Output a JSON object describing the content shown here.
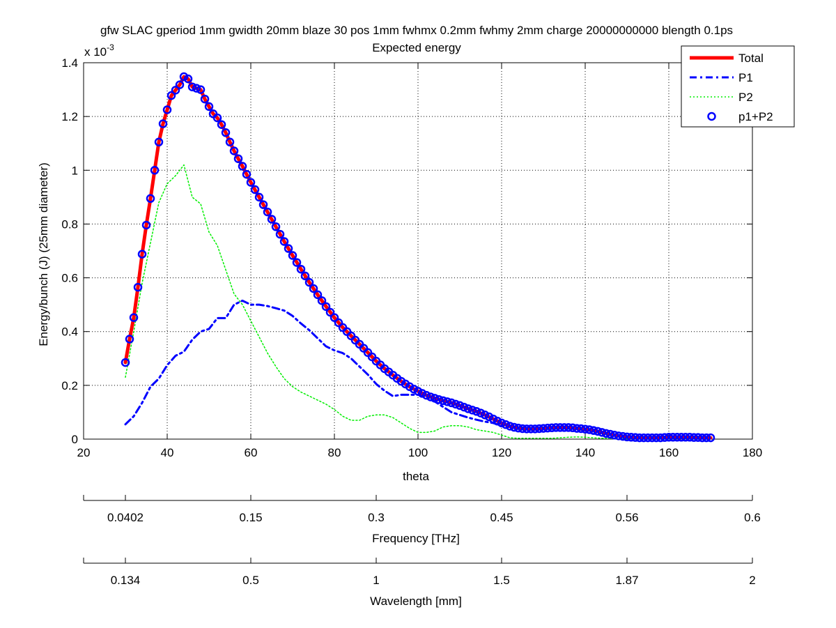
{
  "chart_data": {
    "type": "line",
    "title": "gfw SLAC gperiod 1mm gwidth 20mm blaze 30 pos 1mm fwhmx 0.2mm fwhmy 2mm charge 20000000000 blength 0.1ps",
    "subtitle": "Expected energy",
    "xlabel": "theta",
    "ylabel": "Energy/bunch (J) (25mm diameter)",
    "y_exponent_label": "x 10",
    "y_exponent_power": "-3",
    "xlim": [
      20,
      180
    ],
    "ylim": [
      0,
      1.4
    ],
    "grid": true,
    "legend_position": "top-right",
    "x_ticks": [
      "20",
      "40",
      "60",
      "80",
      "100",
      "120",
      "140",
      "160",
      "180"
    ],
    "y_ticks": [
      "0",
      "0.2",
      "0.4",
      "0.6",
      "0.8",
      "1",
      "1.2",
      "1.4"
    ],
    "secondary_axes": [
      {
        "label": "Frequency [THz]",
        "ticks": [
          {
            "theta": 20,
            "label": ""
          },
          {
            "theta": 30,
            "label": "0.0402"
          },
          {
            "theta": 60,
            "label": "0.15"
          },
          {
            "theta": 90,
            "label": "0.3"
          },
          {
            "theta": 120,
            "label": "0.45"
          },
          {
            "theta": 150,
            "label": "0.56"
          },
          {
            "theta": 180,
            "label": "0.6"
          }
        ]
      },
      {
        "label": "Wavelength [mm]",
        "ticks": [
          {
            "theta": 20,
            "label": ""
          },
          {
            "theta": 30,
            "label": "0.134"
          },
          {
            "theta": 60,
            "label": "0.5"
          },
          {
            "theta": 90,
            "label": "1"
          },
          {
            "theta": 120,
            "label": "1.5"
          },
          {
            "theta": 150,
            "label": "1.87"
          },
          {
            "theta": 180,
            "label": "2"
          }
        ]
      }
    ],
    "series": [
      {
        "name": "Total",
        "style": "solid",
        "color": "#ff0000",
        "x": [
          30,
          31,
          32,
          33,
          34,
          35,
          36,
          37,
          38,
          39,
          40,
          41,
          42,
          43,
          44,
          45,
          46,
          47,
          48,
          49,
          50,
          51,
          52,
          53,
          54,
          55,
          56,
          57,
          58,
          59,
          60,
          62,
          64,
          66,
          68,
          70,
          72,
          74,
          76,
          78,
          80,
          82,
          84,
          86,
          88,
          90,
          92,
          94,
          96,
          98,
          100,
          102,
          104,
          106,
          108,
          110,
          112,
          114,
          116,
          118,
          120,
          122,
          124,
          126,
          128,
          130,
          132,
          134,
          136,
          138,
          140,
          142,
          144,
          146,
          148,
          150,
          152,
          154,
          156,
          158,
          160,
          162,
          164,
          166,
          168,
          170
        ],
        "values": [
          0.285,
          0.372,
          0.452,
          0.565,
          0.688,
          0.796,
          0.895,
          1.0,
          1.105,
          1.173,
          1.225,
          1.278,
          1.298,
          1.318,
          1.348,
          1.34,
          1.31,
          1.305,
          1.3,
          1.265,
          1.237,
          1.21,
          1.195,
          1.17,
          1.14,
          1.105,
          1.072,
          1.043,
          1.015,
          0.985,
          0.955,
          0.9,
          0.845,
          0.79,
          0.735,
          0.683,
          0.632,
          0.583,
          0.537,
          0.493,
          0.452,
          0.415,
          0.384,
          0.353,
          0.322,
          0.29,
          0.262,
          0.238,
          0.215,
          0.195,
          0.178,
          0.163,
          0.152,
          0.143,
          0.135,
          0.125,
          0.113,
          0.103,
          0.09,
          0.075,
          0.06,
          0.048,
          0.041,
          0.038,
          0.038,
          0.04,
          0.042,
          0.043,
          0.043,
          0.04,
          0.037,
          0.032,
          0.025,
          0.018,
          0.012,
          0.008,
          0.006,
          0.005,
          0.005,
          0.006,
          0.007,
          0.007,
          0.007,
          0.006,
          0.005,
          0.005
        ]
      },
      {
        "name": "P1",
        "style": "dashdot",
        "color": "#0000ff",
        "x": [
          30,
          32,
          34,
          36,
          38,
          40,
          42,
          44,
          46,
          48,
          50,
          52,
          54,
          56,
          58,
          60,
          62,
          64,
          66,
          68,
          70,
          72,
          74,
          76,
          78,
          80,
          82,
          84,
          86,
          88,
          90,
          92,
          94,
          96,
          98,
          100,
          102,
          104,
          106,
          108,
          110,
          112,
          114,
          116,
          118,
          120,
          122,
          124,
          126,
          128,
          130,
          132,
          134,
          136,
          138,
          140,
          142,
          144,
          146,
          148,
          150,
          152,
          154,
          156,
          158,
          160,
          162,
          164,
          166,
          168,
          170
        ],
        "values": [
          0.055,
          0.085,
          0.135,
          0.195,
          0.225,
          0.275,
          0.31,
          0.325,
          0.37,
          0.4,
          0.41,
          0.45,
          0.45,
          0.5,
          0.515,
          0.5,
          0.5,
          0.495,
          0.487,
          0.478,
          0.458,
          0.43,
          0.405,
          0.375,
          0.345,
          0.33,
          0.32,
          0.3,
          0.27,
          0.24,
          0.205,
          0.18,
          0.16,
          0.165,
          0.165,
          0.165,
          0.16,
          0.14,
          0.12,
          0.1,
          0.09,
          0.08,
          0.072,
          0.065,
          0.06,
          0.05,
          0.045,
          0.04,
          0.038,
          0.038,
          0.04,
          0.042,
          0.043,
          0.043,
          0.04,
          0.037,
          0.032,
          0.025,
          0.018,
          0.012,
          0.008,
          0.006,
          0.005,
          0.005,
          0.006,
          0.007,
          0.007,
          0.007,
          0.006,
          0.005,
          0.005
        ]
      },
      {
        "name": "P2",
        "style": "dotted",
        "color": "#00ee00",
        "x": [
          30,
          32,
          34,
          36,
          38,
          40,
          42,
          44,
          46,
          48,
          50,
          52,
          54,
          56,
          58,
          60,
          62,
          64,
          66,
          68,
          70,
          72,
          74,
          76,
          78,
          80,
          82,
          84,
          86,
          88,
          90,
          92,
          94,
          96,
          98,
          100,
          102,
          104,
          106,
          108,
          110,
          112,
          114,
          116,
          118,
          120,
          122,
          124,
          126,
          128,
          130,
          132,
          134,
          136,
          138,
          140,
          142,
          144,
          146,
          148,
          150,
          152,
          154,
          156,
          158,
          160,
          162,
          164,
          166,
          168,
          170
        ],
        "values": [
          0.23,
          0.4,
          0.58,
          0.73,
          0.88,
          0.95,
          0.98,
          1.02,
          0.9,
          0.875,
          0.77,
          0.72,
          0.63,
          0.54,
          0.5,
          0.44,
          0.38,
          0.32,
          0.27,
          0.225,
          0.195,
          0.175,
          0.16,
          0.145,
          0.13,
          0.11,
          0.085,
          0.07,
          0.07,
          0.085,
          0.09,
          0.09,
          0.08,
          0.06,
          0.04,
          0.025,
          0.025,
          0.03,
          0.045,
          0.05,
          0.05,
          0.045,
          0.035,
          0.03,
          0.025,
          0.015,
          0.005,
          0.003,
          0.003,
          0.003,
          0.003,
          0.003,
          0.005,
          0.007,
          0.008,
          0.007,
          0.005,
          0.003,
          0.002,
          0.001,
          0.001,
          0.001,
          0.001,
          0.001,
          0.001,
          0.001,
          0.001,
          0.001,
          0.001,
          0.001,
          0.001
        ]
      },
      {
        "name": "p1+P2",
        "style": "circles",
        "color": "#0000ff",
        "x": [
          30,
          31,
          32,
          33,
          34,
          35,
          36,
          37,
          38,
          39,
          40,
          41,
          42,
          43,
          44,
          45,
          46,
          47,
          48,
          49,
          50,
          51,
          52,
          53,
          54,
          55,
          56,
          57,
          58,
          59,
          60,
          61,
          62,
          63,
          64,
          65,
          66,
          67,
          68,
          69,
          70,
          71,
          72,
          73,
          74,
          75,
          76,
          77,
          78,
          79,
          80,
          81,
          82,
          83,
          84,
          85,
          86,
          87,
          88,
          89,
          90,
          91,
          92,
          93,
          94,
          95,
          96,
          97,
          98,
          99,
          100,
          101,
          102,
          103,
          104,
          105,
          106,
          107,
          108,
          109,
          110,
          111,
          112,
          113,
          114,
          115,
          116,
          117,
          118,
          119,
          120,
          121,
          122,
          123,
          124,
          125,
          126,
          127,
          128,
          129,
          130,
          131,
          132,
          133,
          134,
          135,
          136,
          137,
          138,
          139,
          140,
          141,
          142,
          143,
          144,
          145,
          146,
          147,
          148,
          149,
          150,
          151,
          152,
          153,
          154,
          155,
          156,
          157,
          158,
          159,
          160,
          161,
          162,
          163,
          164,
          165,
          166,
          167,
          168,
          169,
          170
        ],
        "values": [
          0.285,
          0.372,
          0.452,
          0.565,
          0.688,
          0.796,
          0.895,
          1.0,
          1.105,
          1.173,
          1.225,
          1.278,
          1.298,
          1.318,
          1.348,
          1.34,
          1.31,
          1.305,
          1.3,
          1.265,
          1.237,
          1.21,
          1.195,
          1.17,
          1.14,
          1.105,
          1.072,
          1.043,
          1.015,
          0.985,
          0.955,
          0.928,
          0.9,
          0.872,
          0.845,
          0.818,
          0.79,
          0.762,
          0.735,
          0.709,
          0.683,
          0.657,
          0.632,
          0.607,
          0.583,
          0.56,
          0.537,
          0.515,
          0.493,
          0.472,
          0.452,
          0.433,
          0.415,
          0.4,
          0.384,
          0.368,
          0.353,
          0.338,
          0.322,
          0.306,
          0.29,
          0.276,
          0.262,
          0.25,
          0.238,
          0.226,
          0.215,
          0.205,
          0.195,
          0.186,
          0.178,
          0.17,
          0.163,
          0.157,
          0.152,
          0.147,
          0.143,
          0.139,
          0.135,
          0.13,
          0.125,
          0.119,
          0.113,
          0.108,
          0.103,
          0.097,
          0.09,
          0.083,
          0.075,
          0.067,
          0.06,
          0.054,
          0.048,
          0.044,
          0.041,
          0.039,
          0.038,
          0.038,
          0.038,
          0.039,
          0.04,
          0.041,
          0.042,
          0.043,
          0.043,
          0.043,
          0.043,
          0.042,
          0.04,
          0.039,
          0.037,
          0.035,
          0.032,
          0.029,
          0.025,
          0.021,
          0.018,
          0.015,
          0.012,
          0.01,
          0.008,
          0.007,
          0.006,
          0.005,
          0.005,
          0.005,
          0.005,
          0.005,
          0.005,
          0.006,
          0.007,
          0.007,
          0.007,
          0.007,
          0.007,
          0.007,
          0.006,
          0.006,
          0.005,
          0.005,
          0.005
        ]
      }
    ]
  }
}
